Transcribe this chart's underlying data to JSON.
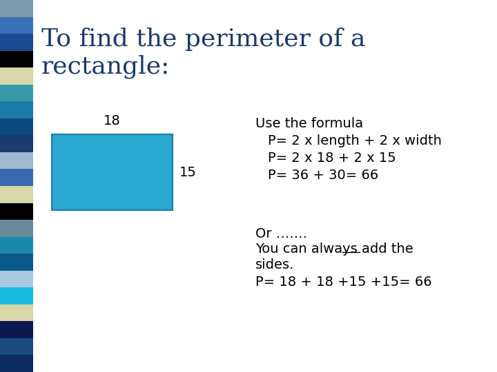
{
  "title_line1": "To find the perimeter of a",
  "title_line2": "rectangle:",
  "title_color": "#1a3a6b",
  "title_fontsize": 26,
  "bg_color": "#ffffff",
  "rect_color": "#29a8d0",
  "rect_edge_color": "#1a7aaa",
  "label_18": "18",
  "label_15": "15",
  "formula_header": "Use the formula",
  "formula_line1": "P= 2 x length + 2 x width",
  "formula_line2": "P= 2 x 18 + 2 x 15",
  "formula_line3": "P= 36 + 30= 66",
  "or_text": "Or …….",
  "you_text_pre": "You can always ",
  "you_text_underline": "add",
  "you_text_post": " the",
  "sides_text": "sides.",
  "p_text": "P= 18 + 18 +15 +15= 66",
  "text_color": "#000000",
  "text_fontsize": 14,
  "header_fontsize": 14,
  "sidebar_colors": [
    "#7a9aaa",
    "#3a6ab0",
    "#1a4a90",
    "#000000",
    "#d8d8a8",
    "#3a9aaa",
    "#1a7aaa",
    "#0a4a80",
    "#1a3a70",
    "#a0b8d0",
    "#3a6ab0",
    "#d8d8a8",
    "#000000",
    "#6a8a9a",
    "#1a8aaa",
    "#0a5a8a",
    "#aac8e0",
    "#1abae0",
    "#d8d8a8",
    "#0a1a50",
    "#1a4a80",
    "#0a2a60"
  ]
}
